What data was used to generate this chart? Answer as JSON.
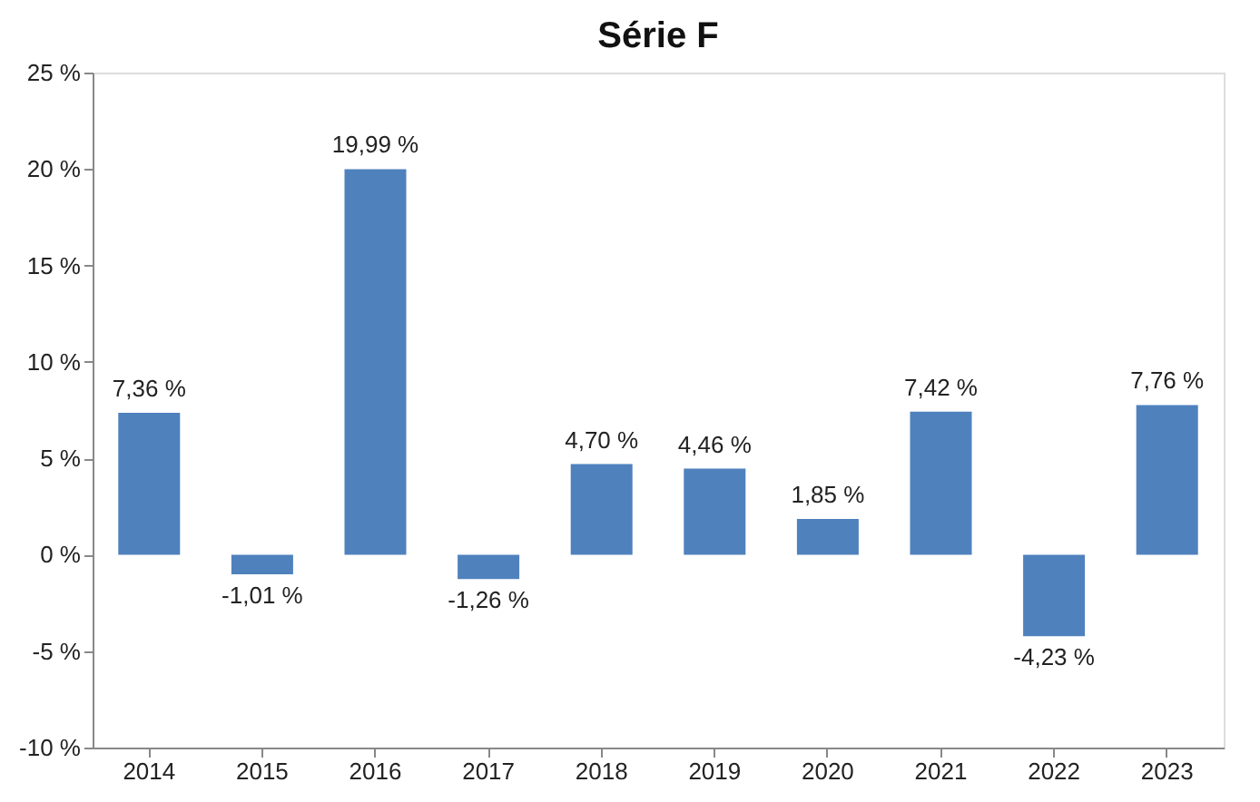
{
  "chart_data": {
    "type": "bar",
    "title": "Série F",
    "categories": [
      "2014",
      "2015",
      "2016",
      "2017",
      "2018",
      "2019",
      "2020",
      "2021",
      "2022",
      "2023"
    ],
    "values": [
      7.36,
      -1.01,
      19.99,
      -1.26,
      4.7,
      4.46,
      1.85,
      7.42,
      -4.23,
      7.76
    ],
    "value_labels": [
      "7,36 %",
      "-1,01 %",
      "19,99 %",
      "-1,26 %",
      "4,70 %",
      "4,46 %",
      "1,85 %",
      "7,42 %",
      "-4,23 %",
      "7,76 %"
    ],
    "color": "#4f81bd",
    "ylim": [
      -10,
      25
    ],
    "yticks": [
      {
        "value": -10,
        "label": "-10 %"
      },
      {
        "value": -5,
        "label": "-5 %"
      },
      {
        "value": 0,
        "label": "0 %"
      },
      {
        "value": 5,
        "label": "5 %"
      },
      {
        "value": 10,
        "label": "10 %"
      },
      {
        "value": 15,
        "label": "15 %"
      },
      {
        "value": 20,
        "label": "20 %"
      },
      {
        "value": 25,
        "label": "25 %"
      }
    ],
    "grid": false
  }
}
